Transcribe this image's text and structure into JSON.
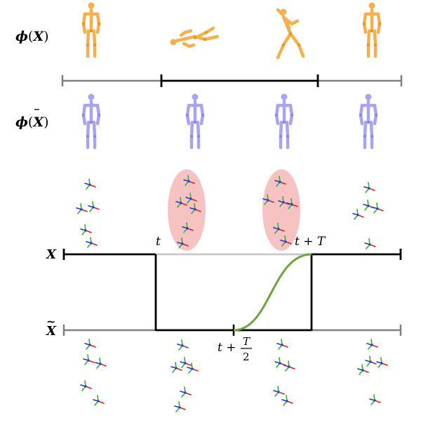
{
  "labels": {
    "phi_x": {
      "phi": "ϕ",
      "open": "(",
      "var": "X",
      "close": ")"
    },
    "phi_xbar": {
      "phi": "ϕ",
      "open": "(",
      "var": "X",
      "bar": "‾",
      "close": ")"
    },
    "x_axis": "X",
    "xtilde_axis": "X",
    "tilde": "~",
    "t": "t",
    "t_plus_T": "t + T",
    "t_plus_half_T": {
      "prefix": "t +",
      "numerator": "T",
      "denominator": "2"
    }
  },
  "colors": {
    "skeleton_top": "#f5b04e",
    "skeleton_bottom": "#a8a3f2",
    "mask": "#f7c2c2",
    "curve": "#6aa63c",
    "gray_line": "#7f7f7f",
    "light_gray_line": "#c8c8c8",
    "black": "#000000",
    "axis_red": "#e8221b",
    "axis_green": "#2db52d",
    "axis_blue": "#2633d6"
  },
  "icons": {
    "skeleton": "human-skeleton-icon",
    "frame": "coordinate-frame-icon"
  }
}
